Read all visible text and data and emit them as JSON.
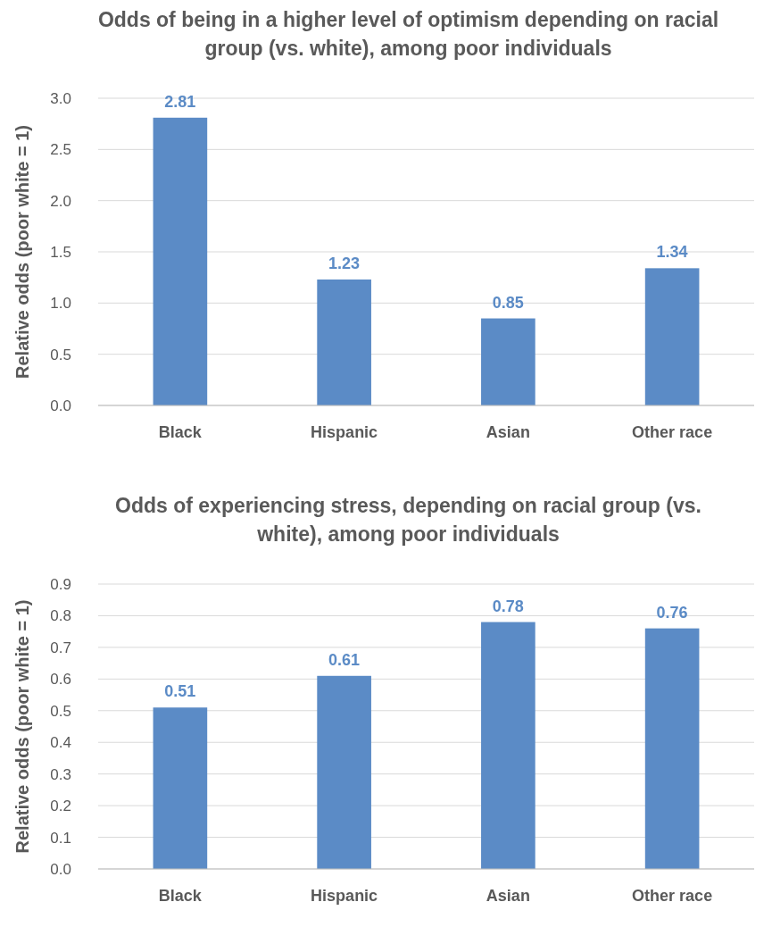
{
  "chart_data": [
    {
      "type": "bar",
      "title": "Odds of being in a higher level of optimism depending on racial group (vs. white), among poor individuals",
      "ylabel": "Relative odds (poor white = 1)",
      "categories": [
        "Black",
        "Hispanic",
        "Asian",
        "Other race"
      ],
      "values": [
        2.81,
        1.23,
        0.85,
        1.34
      ],
      "color": "#5b8bc6",
      "ylim": [
        0,
        3
      ],
      "yticks": [
        {
          "value": 0,
          "label": "0.0"
        },
        {
          "value": 0.5,
          "label": "0.5"
        },
        {
          "value": 1,
          "label": "1.0"
        },
        {
          "value": 1.5,
          "label": "1.5"
        },
        {
          "value": 2,
          "label": "2.0"
        },
        {
          "value": 2.5,
          "label": "2.5"
        },
        {
          "value": 3,
          "label": "3.0"
        }
      ],
      "grid": "y",
      "data_labels": true
    },
    {
      "type": "bar",
      "title": "Odds of experiencing stress, depending on racial group (vs. white), among poor individuals",
      "ylabel": "Relative odds (poor white = 1)",
      "categories": [
        "Black",
        "Hispanic",
        "Asian",
        "Other race"
      ],
      "values": [
        0.51,
        0.61,
        0.78,
        0.76
      ],
      "color": "#5b8bc6",
      "ylim": [
        0,
        0.9
      ],
      "yticks": [
        {
          "value": 0,
          "label": "0.0"
        },
        {
          "value": 0.1,
          "label": "0.1"
        },
        {
          "value": 0.2,
          "label": "0.2"
        },
        {
          "value": 0.3,
          "label": "0.3"
        },
        {
          "value": 0.4,
          "label": "0.4"
        },
        {
          "value": 0.5,
          "label": "0.5"
        },
        {
          "value": 0.6,
          "label": "0.6"
        },
        {
          "value": 0.7,
          "label": "0.7"
        },
        {
          "value": 0.8,
          "label": "0.8"
        },
        {
          "value": 0.9,
          "label": "0.9"
        }
      ],
      "grid": "y",
      "data_labels": true
    }
  ]
}
